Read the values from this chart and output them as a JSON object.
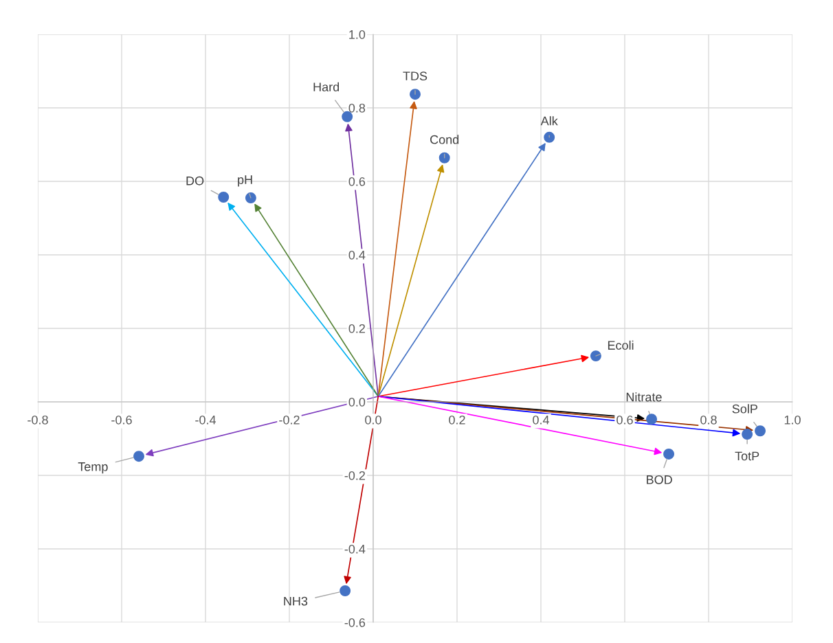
{
  "chart_data": {
    "type": "scatter",
    "marker": "circle",
    "xlim": [
      -0.8,
      1.0
    ],
    "ylim": [
      -0.6,
      1.0
    ],
    "xticks": [
      {
        "value": -0.8,
        "label": "-0.8"
      },
      {
        "value": -0.6,
        "label": "-0.6"
      },
      {
        "value": -0.4,
        "label": "-0.4"
      },
      {
        "value": -0.2,
        "label": "-0.2"
      },
      {
        "value": 0,
        "label": "0.0"
      },
      {
        "value": 0.2,
        "label": "0.2"
      },
      {
        "value": 0.4,
        "label": "0.4"
      },
      {
        "value": 0.6,
        "label": "0.6"
      },
      {
        "value": 0.8,
        "label": "0.8"
      },
      {
        "value": 1.0,
        "label": "1.0"
      }
    ],
    "yticks": [
      {
        "value": -0.6,
        "label": "-0.6"
      },
      {
        "value": -0.4,
        "label": "-0.4"
      },
      {
        "value": -0.2,
        "label": "-0.2"
      },
      {
        "value": 0,
        "label": "0.0"
      },
      {
        "value": 0.2,
        "label": "0.2"
      },
      {
        "value": 0.4,
        "label": "0.4"
      },
      {
        "value": 0.6,
        "label": "0.6"
      },
      {
        "value": 0.8,
        "label": "0.8"
      },
      {
        "value": 1.0,
        "label": "1.0"
      }
    ],
    "grid": true,
    "legend": false,
    "series": [
      {
        "color": "#4472c4",
        "x": [
          0.1,
          -0.062,
          0.17,
          0.42,
          -0.357,
          -0.292,
          0.531,
          0.664,
          0.923,
          0.892,
          0.705,
          -0.559,
          -0.067
        ],
        "values": [
          0.837,
          0.776,
          0.664,
          0.72,
          0.557,
          0.555,
          0.125,
          -0.047,
          -0.079,
          -0.088,
          -0.142,
          -0.148,
          -0.514
        ]
      }
    ],
    "annotations": [
      {
        "text": "TDS",
        "x": 0.1,
        "y": 0.837
      },
      {
        "text": "Hard",
        "x": -0.062,
        "y": 0.776
      },
      {
        "text": "Cond",
        "x": 0.17,
        "y": 0.664
      },
      {
        "text": "Alk",
        "x": 0.42,
        "y": 0.72
      },
      {
        "text": "DO",
        "x": -0.357,
        "y": 0.557
      },
      {
        "text": "pH",
        "x": -0.292,
        "y": 0.555
      },
      {
        "text": "Ecoli",
        "x": 0.531,
        "y": 0.125
      },
      {
        "text": "Nitrate",
        "x": 0.664,
        "y": -0.047
      },
      {
        "text": "SolP",
        "x": 0.923,
        "y": -0.079
      },
      {
        "text": "TotP",
        "x": 0.892,
        "y": -0.088
      },
      {
        "text": "BOD",
        "x": 0.705,
        "y": -0.142
      },
      {
        "text": "Temp",
        "x": -0.559,
        "y": -0.148
      },
      {
        "text": "NH3",
        "x": -0.067,
        "y": -0.514
      }
    ]
  }
}
